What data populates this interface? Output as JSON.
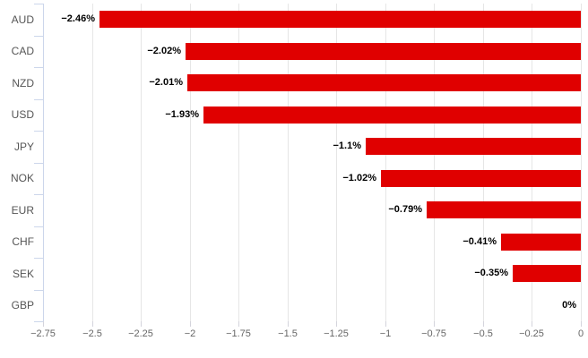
{
  "chart_data": {
    "type": "bar",
    "orientation": "horizontal",
    "title": "",
    "xlabel": "",
    "ylabel": "",
    "categories": [
      "AUD",
      "CAD",
      "NZD",
      "USD",
      "JPY",
      "NOK",
      "EUR",
      "CHF",
      "SEK",
      "GBP"
    ],
    "values": [
      -2.46,
      -2.02,
      -2.01,
      -1.93,
      -1.1,
      -1.02,
      -0.79,
      -0.41,
      -0.35,
      0
    ],
    "value_labels": [
      "−2.46%",
      "−2.02%",
      "−2.01%",
      "−1.93%",
      "−1.1%",
      "−1.02%",
      "−0.79%",
      "−0.41%",
      "−0.35%",
      "0%"
    ],
    "xlim": [
      -2.75,
      0
    ],
    "x_ticks": [
      -2.75,
      -2.5,
      -2.25,
      -2,
      -1.75,
      -1.5,
      -1.25,
      -1,
      -0.75,
      -0.5,
      -0.25,
      0
    ],
    "x_tick_labels": [
      "−2.75",
      "−2.5",
      "−2.25",
      "−2",
      "−1.75",
      "−1.5",
      "−1.25",
      "−1",
      "−0.75",
      "−0.5",
      "−0.25",
      "0"
    ],
    "grid": "vertical",
    "legend": "none",
    "colors": {
      "bar": "#e00000",
      "gridline": "#e6e6e6",
      "axis_line": "#ccd6eb",
      "category_label": "#555555",
      "tick_label": "#666666",
      "value_label": "#000000",
      "background": "#ffffff"
    }
  }
}
